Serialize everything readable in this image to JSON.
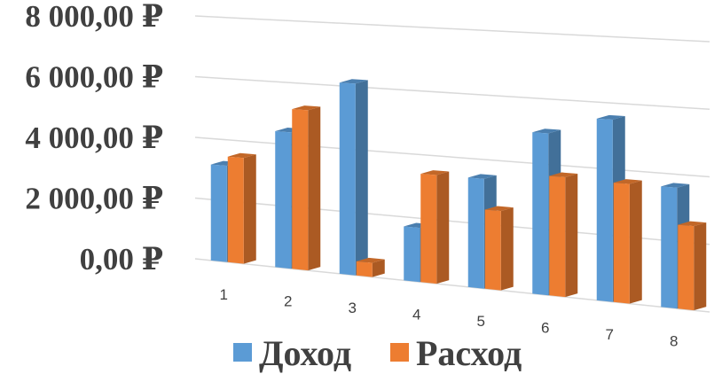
{
  "chart_data": {
    "type": "bar",
    "categories": [
      "1",
      "2",
      "3",
      "4",
      "5",
      "6",
      "7",
      "8"
    ],
    "series": [
      {
        "name": "Доход",
        "color": "#5B9BD5",
        "values": [
          3150,
          4400,
          6100,
          1700,
          3400,
          4950,
          5500,
          3600
        ]
      },
      {
        "name": "Расход",
        "color": "#ED7D31",
        "values": [
          3450,
          5150,
          450,
          3400,
          2450,
          3650,
          3600,
          2500
        ]
      }
    ],
    "y_ticks": [
      "0,00 ₽",
      "2 000,00 ₽",
      "4 000,00 ₽",
      "6 000,00 ₽",
      "8 000,00 ₽"
    ],
    "ylim": [
      0,
      8000
    ],
    "grid": true,
    "legend_position": "bottom",
    "title": "",
    "xlabel": "",
    "ylabel": ""
  }
}
